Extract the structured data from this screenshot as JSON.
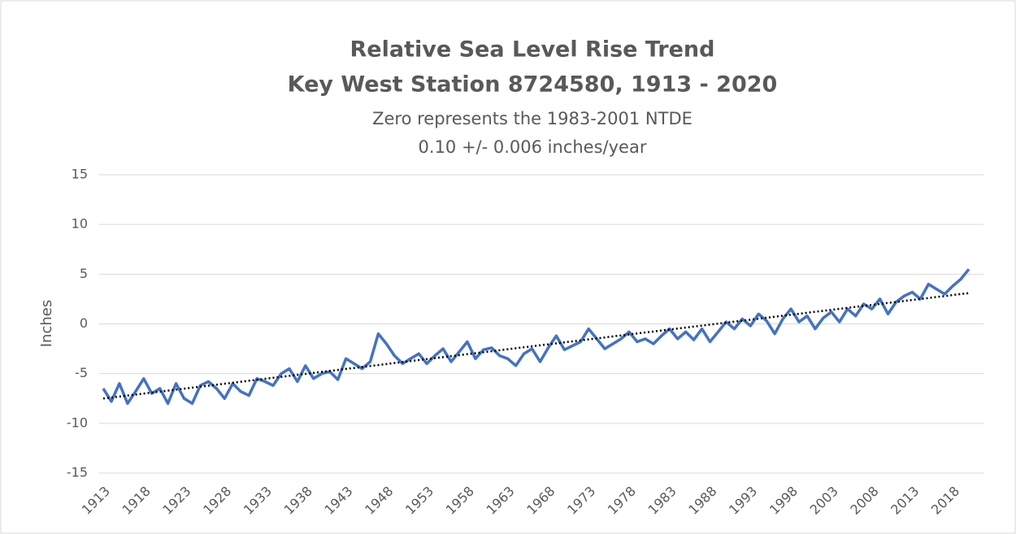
{
  "chart_data": {
    "type": "line",
    "title": "Relative Sea Level Rise Trend",
    "title2": "Key West Station 8724580, 1913 - 2020",
    "subtitle": "Zero represents the 1983-2001 NTDE",
    "subtitle2": "0.10 +/- 0.006 inches/year",
    "ylabel": "Inches",
    "xlim": [
      1913,
      2021
    ],
    "xticks": [
      1913,
      1918,
      1923,
      1928,
      1933,
      1938,
      1943,
      1948,
      1953,
      1958,
      1963,
      1968,
      1973,
      1978,
      1983,
      1988,
      1993,
      1998,
      2003,
      2008,
      2013,
      2018
    ],
    "ylim": [
      -15,
      15
    ],
    "yticks": [
      -15,
      -10,
      -5,
      0,
      5,
      10,
      15
    ],
    "grid": true,
    "series": [
      {
        "color": "#4472c4",
        "x": [
          1913,
          1914,
          1915,
          1916,
          1917,
          1918,
          1919,
          1920,
          1921,
          1922,
          1923,
          1924,
          1925,
          1926,
          1927,
          1928,
          1929,
          1930,
          1931,
          1932,
          1933,
          1934,
          1935,
          1936,
          1937,
          1938,
          1939,
          1940,
          1941,
          1942,
          1943,
          1944,
          1945,
          1946,
          1947,
          1948,
          1949,
          1950,
          1951,
          1952,
          1953,
          1954,
          1955,
          1956,
          1957,
          1958,
          1959,
          1960,
          1961,
          1962,
          1963,
          1964,
          1965,
          1966,
          1967,
          1968,
          1969,
          1970,
          1971,
          1972,
          1973,
          1974,
          1975,
          1976,
          1977,
          1978,
          1979,
          1980,
          1981,
          1982,
          1983,
          1984,
          1985,
          1986,
          1987,
          1988,
          1989,
          1990,
          1991,
          1992,
          1993,
          1994,
          1995,
          1996,
          1997,
          1998,
          1999,
          2000,
          2001,
          2002,
          2003,
          2004,
          2005,
          2006,
          2007,
          2008,
          2009,
          2010,
          2011,
          2012,
          2013,
          2014,
          2015,
          2016,
          2017,
          2018,
          2019,
          2020
        ],
        "values": [
          -6.5,
          -7.8,
          -6,
          -8,
          -6.8,
          -5.5,
          -7,
          -6.5,
          -8,
          -6,
          -7.5,
          -8,
          -6.2,
          -5.8,
          -6.5,
          -7.5,
          -6,
          -6.8,
          -7.2,
          -5.5,
          -5.8,
          -6.2,
          -5,
          -4.5,
          -5.8,
          -4.2,
          -5.5,
          -5,
          -4.8,
          -5.6,
          -3.5,
          -4,
          -4.5,
          -3.8,
          -1,
          -2,
          -3.2,
          -4,
          -3.5,
          -3,
          -4,
          -3.2,
          -2.5,
          -3.8,
          -2.8,
          -1.8,
          -3.5,
          -2.6,
          -2.4,
          -3.2,
          -3.5,
          -4.2,
          -3,
          -2.5,
          -3.8,
          -2.4,
          -1.2,
          -2.6,
          -2.2,
          -1.8,
          -0.5,
          -1.5,
          -2.5,
          -2,
          -1.5,
          -0.8,
          -1.8,
          -1.5,
          -2,
          -1.2,
          -0.5,
          -1.5,
          -0.8,
          -1.6,
          -0.5,
          -1.8,
          -0.8,
          0.2,
          -0.5,
          0.5,
          -0.2,
          1,
          0.3,
          -1,
          0.5,
          1.5,
          0.2,
          0.8,
          -0.5,
          0.6,
          1.2,
          0.2,
          1.5,
          0.8,
          2,
          1.5,
          2.5,
          1,
          2.2,
          2.8,
          3.2,
          2.5,
          4,
          3.5,
          3,
          3.8,
          4.5,
          5.5
        ]
      }
    ],
    "trendline": {
      "color": "#000000",
      "x": [
        1913,
        2020
      ],
      "values": [
        -7.5,
        3.1
      ]
    }
  }
}
